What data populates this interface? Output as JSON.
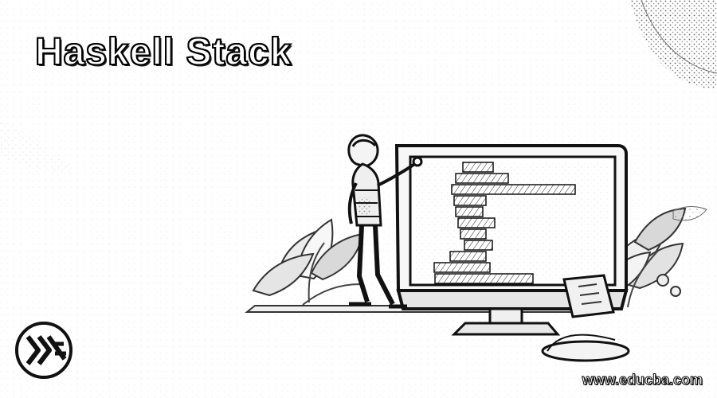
{
  "page": {
    "title": "Haskell Stack",
    "watermark": "www.educba.com"
  },
  "icons": {
    "logo": "haskell-logo-icon",
    "person": "presenter-person-icon",
    "monitor": "monitor-icon",
    "code": "code-blocks-icon",
    "plant": "plant-icon"
  }
}
